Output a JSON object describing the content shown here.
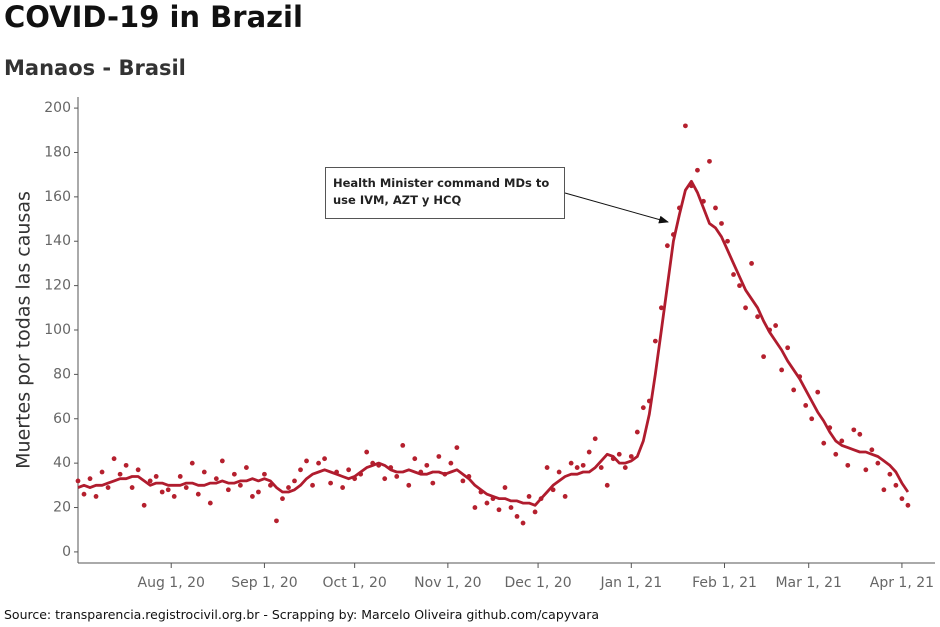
{
  "chart_data": {
    "type": "line",
    "title": "COVID-19 in Brazil",
    "subtitle": "Manaos - Brasil",
    "ylabel": "Muertes por todas las causas",
    "source": "Source: transparencia.registrocivil.org.br  -  Scrapping by: Marcelo Oliveira github.com/capyvara",
    "annotation": "Health Minister command MDs to use IVM, AZT y HCQ",
    "xlim": [
      "2020-07-01",
      "2021-04-12"
    ],
    "xticks": [
      {
        "value": "2020-08-01",
        "label": "Aug 1, 20"
      },
      {
        "value": "2020-09-01",
        "label": "Sep 1, 20"
      },
      {
        "value": "2020-10-01",
        "label": "Oct 1, 20"
      },
      {
        "value": "2020-11-01",
        "label": "Nov 1, 20"
      },
      {
        "value": "2020-12-01",
        "label": "Dec 1, 20"
      },
      {
        "value": "2021-01-01",
        "label": "Jan 1, 21"
      },
      {
        "value": "2021-02-01",
        "label": "Feb 1, 21"
      },
      {
        "value": "2021-03-01",
        "label": "Mar 1, 21"
      },
      {
        "value": "2021-04-01",
        "label": "Apr 1, 21"
      }
    ],
    "ylim": [
      -5,
      205
    ],
    "yticks": [
      0,
      20,
      40,
      60,
      80,
      100,
      120,
      140,
      160,
      180,
      200
    ],
    "x": [
      "2020-07-01",
      "2020-07-03",
      "2020-07-05",
      "2020-07-07",
      "2020-07-09",
      "2020-07-11",
      "2020-07-13",
      "2020-07-15",
      "2020-07-17",
      "2020-07-19",
      "2020-07-21",
      "2020-07-23",
      "2020-07-25",
      "2020-07-27",
      "2020-07-29",
      "2020-07-31",
      "2020-08-02",
      "2020-08-04",
      "2020-08-06",
      "2020-08-08",
      "2020-08-10",
      "2020-08-12",
      "2020-08-14",
      "2020-08-16",
      "2020-08-18",
      "2020-08-20",
      "2020-08-22",
      "2020-08-24",
      "2020-08-26",
      "2020-08-28",
      "2020-08-30",
      "2020-09-01",
      "2020-09-03",
      "2020-09-05",
      "2020-09-07",
      "2020-09-09",
      "2020-09-11",
      "2020-09-13",
      "2020-09-15",
      "2020-09-17",
      "2020-09-19",
      "2020-09-21",
      "2020-09-23",
      "2020-09-25",
      "2020-09-27",
      "2020-09-29",
      "2020-10-01",
      "2020-10-03",
      "2020-10-05",
      "2020-10-07",
      "2020-10-09",
      "2020-10-11",
      "2020-10-13",
      "2020-10-15",
      "2020-10-17",
      "2020-10-19",
      "2020-10-21",
      "2020-10-23",
      "2020-10-25",
      "2020-10-27",
      "2020-10-29",
      "2020-10-31",
      "2020-11-02",
      "2020-11-04",
      "2020-11-06",
      "2020-11-08",
      "2020-11-10",
      "2020-11-12",
      "2020-11-14",
      "2020-11-16",
      "2020-11-18",
      "2020-11-20",
      "2020-11-22",
      "2020-11-24",
      "2020-11-26",
      "2020-11-28",
      "2020-11-30",
      "2020-12-02",
      "2020-12-04",
      "2020-12-06",
      "2020-12-08",
      "2020-12-10",
      "2020-12-12",
      "2020-12-14",
      "2020-12-16",
      "2020-12-18",
      "2020-12-20",
      "2020-12-22",
      "2020-12-24",
      "2020-12-26",
      "2020-12-28",
      "2020-12-30",
      "2021-01-01",
      "2021-01-03",
      "2021-01-05",
      "2021-01-07",
      "2021-01-09",
      "2021-01-11",
      "2021-01-13",
      "2021-01-15",
      "2021-01-17",
      "2021-01-19",
      "2021-01-21",
      "2021-01-23",
      "2021-01-25",
      "2021-01-27",
      "2021-01-29",
      "2021-01-31",
      "2021-02-02",
      "2021-02-04",
      "2021-02-06",
      "2021-02-08",
      "2021-02-10",
      "2021-02-12",
      "2021-02-14",
      "2021-02-16",
      "2021-02-18",
      "2021-02-20",
      "2021-02-22",
      "2021-02-24",
      "2021-02-26",
      "2021-02-28",
      "2021-03-02",
      "2021-03-04",
      "2021-03-06",
      "2021-03-08",
      "2021-03-10",
      "2021-03-12",
      "2021-03-14",
      "2021-03-16",
      "2021-03-18",
      "2021-03-20",
      "2021-03-22",
      "2021-03-24",
      "2021-03-26",
      "2021-03-28",
      "2021-03-30",
      "2021-04-01",
      "2021-04-03"
    ],
    "series": [
      {
        "kind": "scatter",
        "color": "#b5202e",
        "values": [
          32,
          26,
          33,
          25,
          36,
          29,
          42,
          35,
          39,
          29,
          37,
          21,
          32,
          34,
          27,
          28,
          25,
          34,
          29,
          40,
          26,
          36,
          22,
          33,
          41,
          28,
          35,
          30,
          38,
          25,
          27,
          35,
          30,
          14,
          24,
          29,
          32,
          37,
          41,
          30,
          40,
          42,
          31,
          36,
          29,
          37,
          33,
          35,
          45,
          40,
          39,
          33,
          38,
          34,
          48,
          30,
          42,
          36,
          39,
          31,
          43,
          35,
          40,
          47,
          32,
          34,
          20,
          27,
          22,
          24,
          19,
          29,
          20,
          16,
          13,
          25,
          18,
          24,
          38,
          28,
          36,
          25,
          40,
          38,
          39,
          45,
          51,
          38,
          30,
          42,
          44,
          38,
          43,
          54,
          65,
          68,
          95,
          110,
          138,
          143,
          155,
          192,
          165,
          172,
          158,
          176,
          155,
          148,
          140,
          125,
          120,
          110,
          130,
          106,
          88,
          100,
          102,
          82,
          92,
          73,
          79,
          66,
          60,
          72,
          49,
          56,
          44,
          50,
          39,
          55,
          53,
          37,
          46,
          40,
          28,
          35,
          30,
          24,
          21
        ]
      },
      {
        "kind": "line",
        "color": "#b01c2e",
        "values": [
          29,
          30,
          29,
          30,
          30,
          31,
          32,
          33,
          33,
          34,
          34,
          32,
          30,
          31,
          31,
          30,
          30,
          30,
          31,
          31,
          30,
          30,
          31,
          31,
          32,
          31,
          31,
          32,
          32,
          33,
          32,
          33,
          32,
          29,
          27,
          27,
          28,
          30,
          33,
          35,
          36,
          37,
          36,
          35,
          34,
          33,
          34,
          36,
          38,
          39,
          40,
          39,
          37,
          36,
          36,
          37,
          36,
          35,
          35,
          36,
          36,
          35,
          36,
          37,
          35,
          33,
          30,
          28,
          26,
          25,
          24,
          24,
          23,
          23,
          22,
          22,
          21,
          24,
          27,
          30,
          32,
          34,
          35,
          35,
          36,
          36,
          38,
          41,
          44,
          43,
          40,
          40,
          41,
          43,
          50,
          62,
          80,
          100,
          120,
          140,
          152,
          163,
          167,
          162,
          155,
          148,
          146,
          142,
          136,
          130,
          124,
          118,
          114,
          110,
          104,
          99,
          95,
          91,
          86,
          82,
          78,
          73,
          68,
          63,
          59,
          54,
          50,
          48,
          47,
          46,
          45,
          45,
          44,
          43,
          41,
          39,
          36,
          31,
          27
        ]
      }
    ]
  }
}
